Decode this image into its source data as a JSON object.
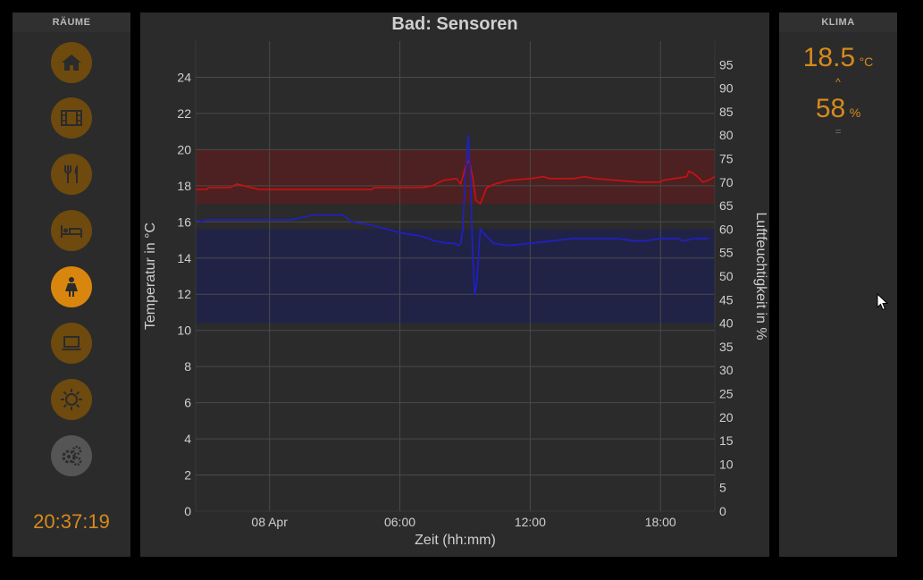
{
  "left": {
    "header": "RÄUME",
    "rooms": [
      {
        "name": "home-icon",
        "state": "normal"
      },
      {
        "name": "film-icon",
        "state": "normal"
      },
      {
        "name": "dining-icon",
        "state": "normal"
      },
      {
        "name": "bed-icon",
        "state": "normal"
      },
      {
        "name": "bath-person-icon",
        "state": "active"
      },
      {
        "name": "laptop-icon",
        "state": "normal"
      },
      {
        "name": "sun-icon",
        "state": "normal"
      },
      {
        "name": "gears-icon",
        "state": "settings"
      }
    ],
    "clock": "20:37:19"
  },
  "right": {
    "header": "KLIMA",
    "temperature": "18.5",
    "temperature_unit": "°C",
    "temperature_trend": "^",
    "humidity": "58",
    "humidity_unit": "%",
    "humidity_trend": "="
  },
  "colors": {
    "accent": "#d68a1c",
    "button_inactive": "#6e4a0e",
    "button_active": "#d9860f",
    "temperature_line": "#cc1111",
    "humidity_line": "#1f1fcc",
    "temperature_band": "#5a1f1f",
    "humidity_band": "#1f2250"
  },
  "chart_data": {
    "type": "line",
    "title": "Bad: Sensoren",
    "xlabel": "Zeit (hh:mm)",
    "ylabel_left": "Temperatur in °C",
    "ylabel_right": "Luftfeuchtigkeit in %",
    "x_ticks": [
      "08 Apr",
      "06:00",
      "12:00",
      "18:00"
    ],
    "x_tick_hours": [
      0,
      6,
      12,
      18
    ],
    "xlim_hours": [
      -3.4,
      20.5
    ],
    "ylim_left": [
      0,
      26
    ],
    "y_ticks_left": [
      0,
      2,
      4,
      6,
      8,
      10,
      12,
      14,
      16,
      18,
      20,
      22,
      24
    ],
    "ylim_right": [
      0,
      100
    ],
    "y_ticks_right": [
      0,
      5,
      10,
      15,
      20,
      25,
      30,
      35,
      40,
      45,
      50,
      55,
      60,
      65,
      70,
      75,
      80,
      85,
      90,
      95
    ],
    "grid": true,
    "bands": [
      {
        "axis": "left",
        "from": 17,
        "to": 20,
        "color": "temperature"
      },
      {
        "axis": "right",
        "from": 40,
        "to": 60,
        "color": "humidity"
      }
    ],
    "series": [
      {
        "name": "Temperatur",
        "axis": "left",
        "color": "#cc1111",
        "x": [
          -3.4,
          -2.9,
          -2.8,
          -1.8,
          -1.5,
          -1.2,
          -0.5,
          0,
          1,
          2,
          3,
          4,
          4.7,
          4.8,
          6,
          7,
          7.5,
          8,
          8.6,
          8.8,
          8.9,
          9.05,
          9.2,
          9.35,
          9.5,
          9.7,
          10,
          10.4,
          11,
          12,
          12.6,
          12.9,
          14,
          14.5,
          15,
          16,
          17,
          18,
          18.1,
          19.2,
          19.3,
          19.5,
          19.7,
          19.95,
          20.2,
          20.6
        ],
        "y": [
          17.8,
          17.8,
          17.9,
          17.9,
          18.1,
          18.0,
          17.8,
          17.8,
          17.8,
          17.8,
          17.8,
          17.8,
          17.8,
          17.9,
          17.9,
          17.9,
          18.0,
          18.3,
          18.4,
          18.1,
          18.5,
          19.2,
          19.4,
          18.5,
          17.2,
          17.0,
          17.9,
          18.1,
          18.3,
          18.4,
          18.5,
          18.4,
          18.4,
          18.5,
          18.4,
          18.3,
          18.2,
          18.2,
          18.3,
          18.5,
          18.8,
          18.7,
          18.5,
          18.2,
          18.3,
          18.5
        ]
      },
      {
        "name": "Luftfeuchtigkeit",
        "axis": "right",
        "color": "#1f1fcc",
        "x": [
          -3.4,
          -3.1,
          -2.9,
          -2.5,
          -2.0,
          -1,
          0,
          1,
          1.5,
          2,
          2.5,
          3,
          3.4,
          3.8,
          4.5,
          5,
          5.8,
          6.3,
          7,
          7.6,
          8.2,
          8.5,
          8.7,
          8.8,
          8.9,
          9.0,
          9.15,
          9.25,
          9.35,
          9.45,
          9.55,
          9.7,
          9.9,
          10.3,
          11,
          12,
          13,
          14,
          15,
          16,
          16.8,
          17.3,
          18,
          18.8,
          19,
          19.6,
          20.2
        ],
        "y": [
          62,
          61.5,
          62,
          62,
          62,
          62,
          62,
          62,
          62.5,
          63,
          63,
          63,
          63,
          61.5,
          61,
          60.5,
          59.5,
          59,
          58.5,
          57.5,
          57,
          57,
          56.5,
          57,
          60,
          70,
          80,
          72,
          55,
          46,
          49,
          60,
          59,
          57,
          56.5,
          57,
          57.5,
          58,
          58,
          58,
          57.5,
          57.5,
          58,
          58,
          57.5,
          58,
          58
        ]
      }
    ]
  }
}
